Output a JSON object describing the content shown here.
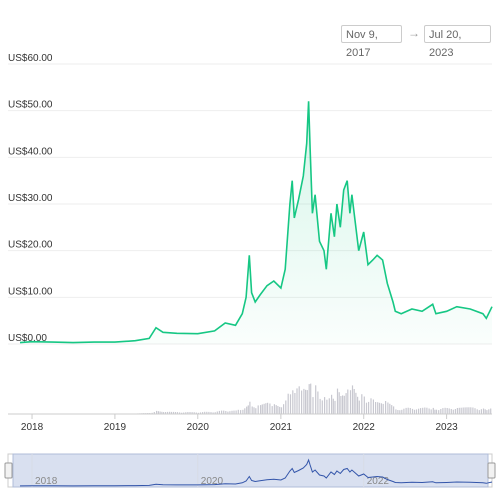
{
  "date_range": {
    "from": "Nov 9, 2017",
    "arrow": "→",
    "to": "Jul 20, 2023"
  },
  "colors": {
    "line": "#16c784",
    "area": "#16c784",
    "volume": "#c8c8d0",
    "navigator_fill": "#6685c2",
    "navigator_line": "#3355aa"
  },
  "chart_data": {
    "type": "line",
    "title": "",
    "xlabel": "",
    "ylabel": "",
    "ylim": [
      0,
      60
    ],
    "grid": true,
    "legend": "none",
    "y_ticks": [
      "US$0.00",
      "US$10.00",
      "US$20.00",
      "US$30.00",
      "US$40.00",
      "US$50.00",
      "US$60.00"
    ],
    "y_tick_values": [
      0,
      10,
      20,
      30,
      40,
      50,
      60
    ],
    "x_ticks": [
      "2018",
      "2019",
      "2020",
      "2021",
      "2022",
      "2023"
    ],
    "navigator_ticks": [
      "2018",
      "2020",
      "2022"
    ],
    "series": [
      {
        "x": [
          "2017-11-09",
          "2018-01-01",
          "2018-04-01",
          "2018-07-01",
          "2018-10-01",
          "2019-01-01",
          "2019-04-01",
          "2019-06-01",
          "2019-07-01",
          "2019-08-01",
          "2019-10-01",
          "2020-01-01",
          "2020-03-15",
          "2020-05-01",
          "2020-06-15",
          "2020-07-15",
          "2020-08-01",
          "2020-08-15",
          "2020-08-25",
          "2020-09-10",
          "2020-10-01",
          "2020-11-01",
          "2020-12-01",
          "2021-01-01",
          "2021-01-20",
          "2021-02-10",
          "2021-02-20",
          "2021-03-01",
          "2021-03-20",
          "2021-04-10",
          "2021-04-25",
          "2021-05-03",
          "2021-05-10",
          "2021-05-20",
          "2021-06-01",
          "2021-06-20",
          "2021-07-10",
          "2021-07-20",
          "2021-08-10",
          "2021-08-25",
          "2021-09-05",
          "2021-09-20",
          "2021-10-05",
          "2021-10-20",
          "2021-11-01",
          "2021-11-10",
          "2021-11-25",
          "2021-12-10",
          "2022-01-01",
          "2022-01-20",
          "2022-02-10",
          "2022-03-01",
          "2022-03-25",
          "2022-04-15",
          "2022-05-10",
          "2022-05-20",
          "2022-06-15",
          "2022-08-01",
          "2022-09-15",
          "2022-11-01",
          "2022-11-15",
          "2023-01-01",
          "2023-02-15",
          "2023-04-15",
          "2023-06-10",
          "2023-06-25",
          "2023-07-20"
        ],
        "y": [
          0.3,
          0.5,
          0.4,
          0.3,
          0.4,
          0.4,
          0.7,
          1.2,
          3.5,
          2.5,
          2.3,
          2.2,
          2.8,
          4.5,
          4.0,
          6.5,
          10.0,
          19.0,
          11.0,
          9.0,
          10.5,
          12.5,
          13.5,
          12.0,
          16.0,
          30.0,
          35.0,
          27.0,
          31.0,
          36.0,
          43.0,
          52.0,
          42.0,
          28.0,
          32.0,
          22.0,
          20.0,
          16.0,
          28.0,
          23.0,
          30.0,
          25.0,
          33.0,
          35.0,
          28.0,
          32.0,
          26.0,
          20.0,
          24.0,
          17.0,
          18.0,
          19.0,
          18.0,
          13.0,
          9.0,
          7.0,
          6.5,
          7.5,
          7.0,
          8.5,
          6.5,
          7.0,
          8.0,
          7.5,
          6.5,
          5.5,
          8.0
        ]
      }
    ],
    "volume_note": "trading volume shown as grey bars, peaking around 2021"
  }
}
